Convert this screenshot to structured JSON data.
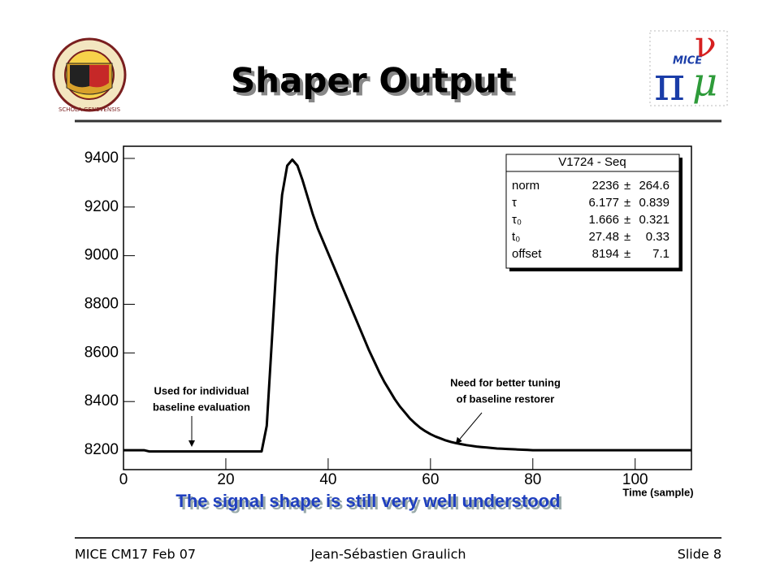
{
  "slide": {
    "title": "Shaper Output",
    "caption": "The signal shape is still very well understood",
    "footer": {
      "left": "MICE CM17 Feb 07",
      "center": "Jean-Sébastien Graulich",
      "right": "Slide 8"
    },
    "logo_left": {
      "motto": "SCHOLA GENEVENSIS"
    },
    "logo_right": {
      "label": "MICE",
      "letters": [
        "π",
        "μ",
        "ν"
      ]
    }
  },
  "chart_data": {
    "type": "line",
    "xlabel": "Time (sample)",
    "color": "#000000",
    "x": [
      0,
      1,
      2,
      3,
      4,
      5,
      6,
      7,
      8,
      9,
      10,
      11,
      12,
      13,
      14,
      15,
      16,
      17,
      18,
      19,
      20,
      21,
      22,
      23,
      24,
      25,
      26,
      27,
      28,
      29,
      30,
      31,
      32,
      33,
      34,
      35,
      36,
      37,
      38,
      39,
      40,
      41,
      42,
      43,
      44,
      45,
      46,
      47,
      48,
      49,
      50,
      51,
      52,
      53,
      54,
      55,
      56,
      57,
      58,
      59,
      60,
      61,
      62,
      63,
      64,
      65,
      66,
      67,
      68,
      69,
      70,
      71,
      72,
      73,
      74,
      75,
      76,
      77,
      78,
      79,
      80,
      81,
      82,
      83,
      84,
      85,
      86,
      87,
      88,
      89,
      90,
      91,
      92,
      93,
      94,
      95,
      96,
      97,
      98,
      99,
      100,
      101,
      102,
      103,
      104,
      105,
      106,
      107,
      108,
      109,
      110,
      111
    ],
    "values": [
      8200,
      8200,
      8200,
      8200,
      8200,
      8195,
      8195,
      8195,
      8195,
      8195,
      8195,
      8195,
      8195,
      8195,
      8195,
      8195,
      8195,
      8195,
      8195,
      8195,
      8195,
      8195,
      8195,
      8195,
      8195,
      8195,
      8195,
      8195,
      8300,
      8650,
      9000,
      9250,
      9370,
      9395,
      9370,
      9310,
      9240,
      9170,
      9110,
      9060,
      9010,
      8960,
      8910,
      8860,
      8810,
      8760,
      8710,
      8660,
      8610,
      8565,
      8520,
      8480,
      8445,
      8410,
      8380,
      8355,
      8330,
      8310,
      8292,
      8278,
      8266,
      8256,
      8248,
      8240,
      8234,
      8229,
      8225,
      8221,
      8218,
      8215,
      8213,
      8211,
      8209,
      8207,
      8206,
      8205,
      8204,
      8203,
      8202,
      8201,
      8200,
      8200,
      8200,
      8200,
      8200,
      8200,
      8200,
      8200,
      8200,
      8200,
      8200,
      8200,
      8200,
      8200,
      8200,
      8200,
      8200,
      8200,
      8200,
      8200,
      8200,
      8200,
      8200,
      8200,
      8200,
      8200,
      8200,
      8200,
      8200,
      8200,
      8200,
      8200
    ],
    "xlim": [
      0,
      111
    ],
    "ylim": [
      8120,
      9450
    ],
    "xticks": [
      0,
      20,
      40,
      60,
      80,
      100
    ],
    "yticks": [
      8200,
      8400,
      8600,
      8800,
      9000,
      9200,
      9400
    ],
    "annotations": [
      {
        "lines": [
          "Used for individual",
          "baseline evaluation"
        ]
      },
      {
        "lines": [
          "Need for better tuning",
          "of baseline restorer"
        ]
      }
    ],
    "stats": {
      "title": "V1724 - Seq",
      "rows": [
        {
          "name": "norm",
          "value": 2236,
          "sign": "±",
          "error": 264.6
        },
        {
          "name": "τ",
          "value": 6.177,
          "sign": "±",
          "error": 0.839
        },
        {
          "name": "τ₀",
          "value": 1.666,
          "sign": "±",
          "error": 0.321
        },
        {
          "name": "t₀",
          "value": 27.48,
          "sign": "±",
          "error": 0.33
        },
        {
          "name": "offset",
          "value": 8194,
          "sign": "±",
          "error": 7.1
        }
      ]
    }
  }
}
